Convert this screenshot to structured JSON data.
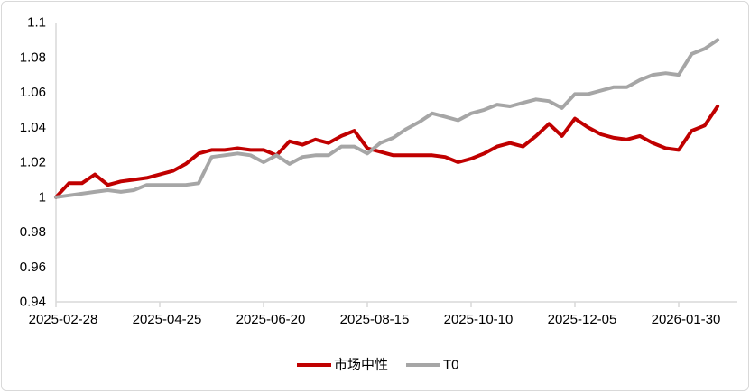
{
  "chart_data": {
    "type": "line",
    "title": "",
    "xlabel": "",
    "ylabel": "",
    "ylim": [
      0.94,
      1.1
    ],
    "y_tick_step": 0.02,
    "y_tick_labels": [
      "0.94",
      "0.96",
      "0.98",
      "1",
      "1.02",
      "1.04",
      "1.06",
      "1.08",
      "1.1"
    ],
    "grid": false,
    "legend_position": "bottom",
    "axis_color": "#d9d9d9",
    "text_color": "#000000",
    "x_tick_every": 8,
    "x_tick_labels": [
      "2025-02-28",
      "2025-04-25",
      "2025-06-20",
      "2025-08-15",
      "2025-10-10",
      "2025-12-05",
      "2026-01-30"
    ],
    "x": [
      "2025-02-28",
      "2025-03-07",
      "2025-03-14",
      "2025-03-21",
      "2025-03-28",
      "2025-04-04",
      "2025-04-11",
      "2025-04-18",
      "2025-04-25",
      "2025-05-02",
      "2025-05-09",
      "2025-05-16",
      "2025-05-23",
      "2025-05-30",
      "2025-06-06",
      "2025-06-13",
      "2025-06-20",
      "2025-06-27",
      "2025-07-04",
      "2025-07-11",
      "2025-07-18",
      "2025-07-25",
      "2025-08-01",
      "2025-08-08",
      "2025-08-15",
      "2025-08-22",
      "2025-08-29",
      "2025-09-05",
      "2025-09-12",
      "2025-09-19",
      "2025-09-26",
      "2025-10-03",
      "2025-10-10",
      "2025-10-17",
      "2025-10-24",
      "2025-10-31",
      "2025-11-07",
      "2025-11-14",
      "2025-11-21",
      "2025-11-28",
      "2025-12-05",
      "2025-12-12",
      "2025-12-19",
      "2025-12-26",
      "2026-01-02",
      "2026-01-09",
      "2026-01-16",
      "2026-01-23",
      "2026-01-30",
      "2026-02-06",
      "2026-02-13",
      "2026-02-20"
    ],
    "series": [
      {
        "name": "市场中性",
        "key": "market-neutral",
        "color": "#c00000",
        "values": [
          1.0,
          1.008,
          1.008,
          1.013,
          1.007,
          1.009,
          1.01,
          1.011,
          1.013,
          1.015,
          1.019,
          1.025,
          1.027,
          1.027,
          1.028,
          1.027,
          1.027,
          1.024,
          1.032,
          1.03,
          1.033,
          1.031,
          1.035,
          1.038,
          1.028,
          1.026,
          1.024,
          1.024,
          1.024,
          1.024,
          1.023,
          1.02,
          1.022,
          1.025,
          1.029,
          1.031,
          1.029,
          1.035,
          1.042,
          1.035,
          1.045,
          1.04,
          1.036,
          1.034,
          1.033,
          1.035,
          1.031,
          1.028,
          1.027,
          1.038,
          1.041,
          1.052
        ]
      },
      {
        "name": "T0",
        "key": "t0",
        "color": "#a6a6a6",
        "values": [
          1.0,
          1.001,
          1.002,
          1.003,
          1.004,
          1.003,
          1.004,
          1.007,
          1.007,
          1.007,
          1.007,
          1.008,
          1.023,
          1.024,
          1.025,
          1.024,
          1.02,
          1.024,
          1.019,
          1.023,
          1.024,
          1.024,
          1.029,
          1.029,
          1.025,
          1.031,
          1.034,
          1.039,
          1.043,
          1.048,
          1.046,
          1.044,
          1.048,
          1.05,
          1.053,
          1.052,
          1.054,
          1.056,
          1.055,
          1.051,
          1.059,
          1.059,
          1.061,
          1.063,
          1.063,
          1.067,
          1.07,
          1.071,
          1.07,
          1.082,
          1.085,
          1.09
        ]
      }
    ]
  }
}
